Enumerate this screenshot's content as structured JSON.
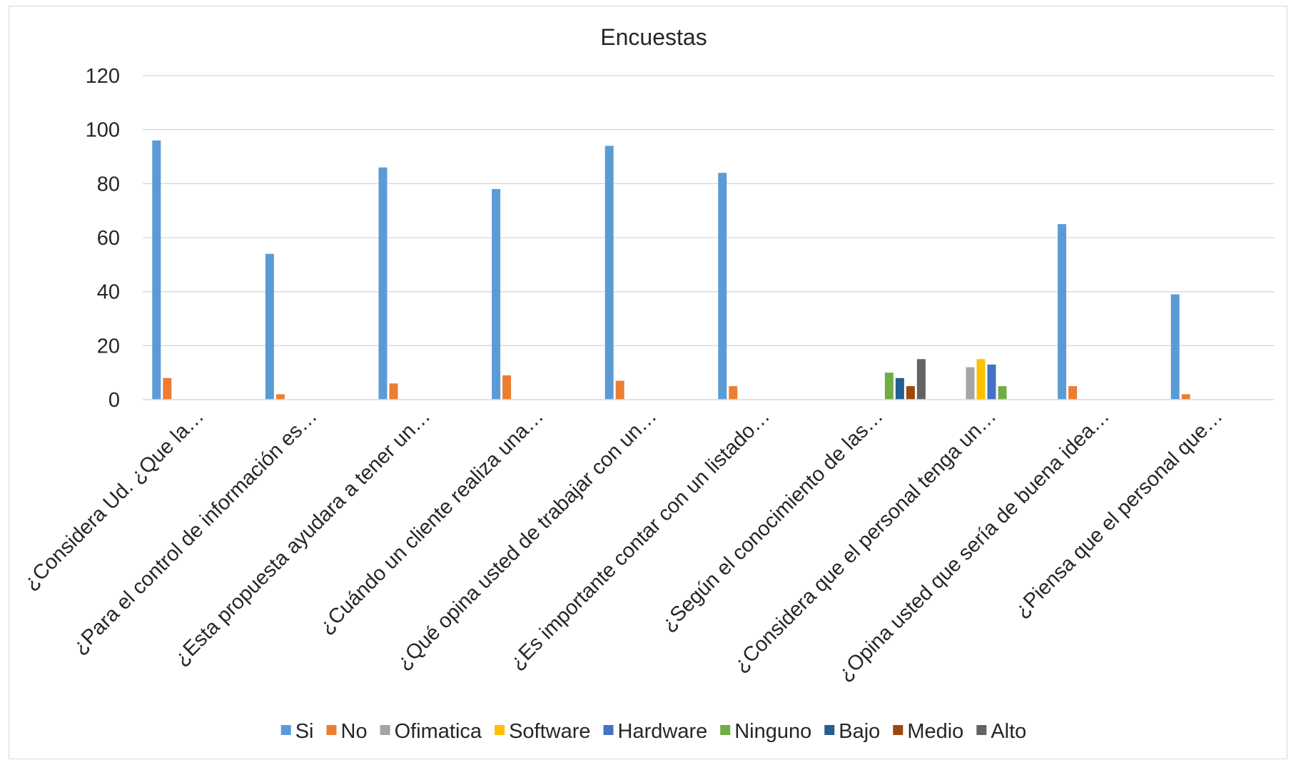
{
  "chart_data": {
    "type": "bar",
    "title": "Encuestas",
    "xlabel": "",
    "ylabel": "",
    "ylim": [
      0,
      120
    ],
    "yticks": [
      "0",
      "20",
      "40",
      "60",
      "80",
      "100",
      "120"
    ],
    "grid": true,
    "legend_position": "bottom",
    "categories": [
      "¿Considera Ud. ¿Que la…",
      "¿Para el control de información es…",
      "¿Esta propuesta ayudara a tener un…",
      "¿Cuándo un cliente realiza una…",
      "¿Qué opina usted de trabajar con un…",
      "¿Es importante contar con un listado…",
      "¿Según el conocimiento de las…",
      "¿Considera que el personal tenga un…",
      "¿Opina usted que sería de buena idea…",
      "¿Piensa que el personal que…"
    ],
    "series": [
      {
        "name": "Si",
        "color": "#5B9BD5",
        "values": [
          96,
          54,
          86,
          78,
          94,
          84,
          null,
          null,
          65,
          39
        ]
      },
      {
        "name": "No",
        "color": "#ED7D31",
        "values": [
          8,
          2,
          6,
          9,
          7,
          5,
          null,
          null,
          5,
          2
        ]
      },
      {
        "name": "Ofimatica",
        "color": "#A5A5A5",
        "values": [
          null,
          null,
          null,
          null,
          null,
          null,
          null,
          12,
          null,
          null
        ]
      },
      {
        "name": "Software",
        "color": "#FFC000",
        "values": [
          null,
          null,
          null,
          null,
          null,
          null,
          null,
          15,
          null,
          null
        ]
      },
      {
        "name": "Hardware",
        "color": "#4472C4",
        "values": [
          null,
          null,
          null,
          null,
          null,
          null,
          null,
          13,
          null,
          null
        ]
      },
      {
        "name": "Ninguno",
        "color": "#70AD47",
        "values": [
          null,
          null,
          null,
          null,
          null,
          null,
          10,
          5,
          null,
          null
        ]
      },
      {
        "name": "Bajo",
        "color": "#255E91",
        "values": [
          null,
          null,
          null,
          null,
          null,
          null,
          8,
          null,
          null,
          null
        ]
      },
      {
        "name": "Medio",
        "color": "#9E480E",
        "values": [
          null,
          null,
          null,
          null,
          null,
          null,
          5,
          null,
          null,
          null
        ]
      },
      {
        "name": "Alto",
        "color": "#636363",
        "values": [
          null,
          null,
          null,
          null,
          null,
          null,
          15,
          null,
          null,
          null
        ]
      }
    ]
  }
}
